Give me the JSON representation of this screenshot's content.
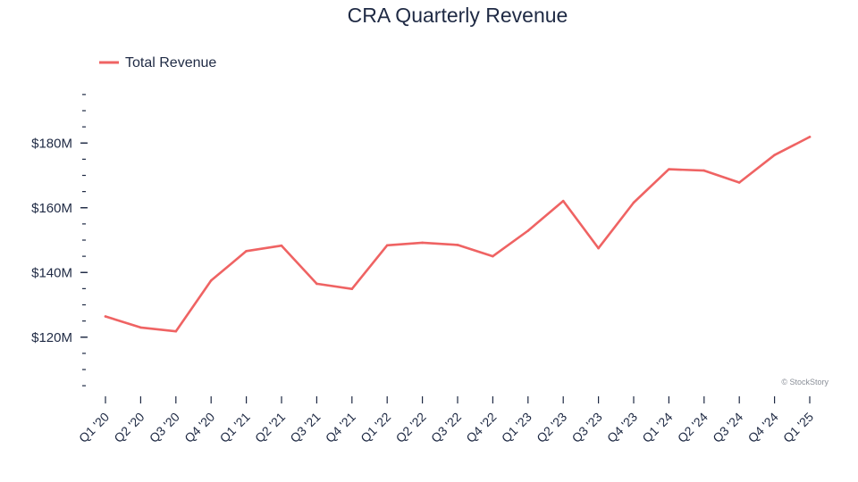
{
  "chart_data": {
    "type": "line",
    "title": "CRA Quarterly Revenue",
    "xlabel": "",
    "ylabel": "",
    "categories": [
      "Q1 '20",
      "Q2 '20",
      "Q3 '20",
      "Q4 '20",
      "Q1 '21",
      "Q2 '21",
      "Q3 '21",
      "Q4 '21",
      "Q1 '22",
      "Q2 '22",
      "Q3 '22",
      "Q4 '22",
      "Q1 '23",
      "Q2 '23",
      "Q3 '23",
      "Q4 '23",
      "Q1 '24",
      "Q2 '24",
      "Q3 '24",
      "Q4 '24",
      "Q1 '25"
    ],
    "series": [
      {
        "name": "Total Revenue",
        "color": "#ef6363",
        "values": [
          126.4,
          123.0,
          121.8,
          137.5,
          146.6,
          148.3,
          136.5,
          134.9,
          148.4,
          149.2,
          148.5,
          145.0,
          152.9,
          162.1,
          147.5,
          161.6,
          171.9,
          171.5,
          167.8,
          176.3,
          181.9
        ]
      }
    ],
    "ylim": [
      102,
      198
    ],
    "yticks": [
      120,
      140,
      160,
      180
    ],
    "ytick_labels": [
      "$120M",
      "$140M",
      "$160M",
      "$180M"
    ],
    "legend_position": "top-left",
    "grid": false
  },
  "watermark": "© StockStory"
}
